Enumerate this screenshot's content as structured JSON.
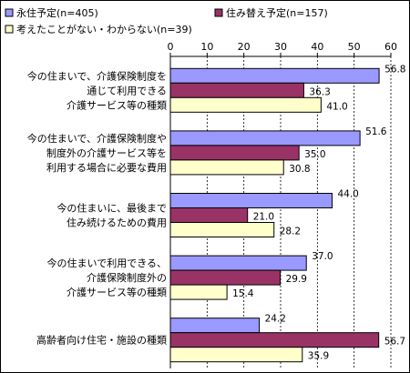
{
  "chart_data": {
    "type": "bar",
    "orientation": "horizontal",
    "categories": [
      [
        "今の住まいで、介護保険制度を",
        "通じて利用できる",
        "介護サービス等の種類"
      ],
      [
        "今の住まいで、介護保険制度や",
        "制度外の介護サービス等を",
        "利用する場合に必要な費用"
      ],
      [
        "今の住まいに、最後まで",
        "住み続けるための費用"
      ],
      [
        "今の住まいで利用できる、",
        "介護保険制度外の",
        "介護サービス等の種類"
      ],
      [
        "高齢者向け住宅・施設の種類"
      ]
    ],
    "series": [
      {
        "name": "永住予定(n=405)",
        "color": "#9999ff",
        "values": [
          56.8,
          51.6,
          44.0,
          37.0,
          24.2
        ],
        "labels": [
          "56.8",
          "51.6",
          "44.0",
          "37.0",
          "24.2"
        ]
      },
      {
        "name": "住み替え予定(n=157)",
        "color": "#993366",
        "values": [
          36.3,
          35.0,
          21.0,
          29.9,
          56.7
        ],
        "labels": [
          "36.3",
          "35.0",
          "21.0",
          "29.9",
          "56.7"
        ]
      },
      {
        "name": "考えたことがない・わからない(n=39)",
        "color": "#ffffcc",
        "values": [
          41.0,
          30.8,
          28.2,
          15.4,
          35.9
        ],
        "labels": [
          "41.0",
          "30.8",
          "28.2",
          "15.4",
          "35.9"
        ]
      }
    ],
    "xlim": [
      0,
      60
    ],
    "xticks": [
      0,
      10,
      20,
      30,
      40,
      50,
      60
    ],
    "xtick_labels": [
      "0",
      "10",
      "20",
      "30",
      "40",
      "50",
      "60"
    ],
    "xaxis_position": "top",
    "grid": true,
    "legend_position": "top"
  }
}
